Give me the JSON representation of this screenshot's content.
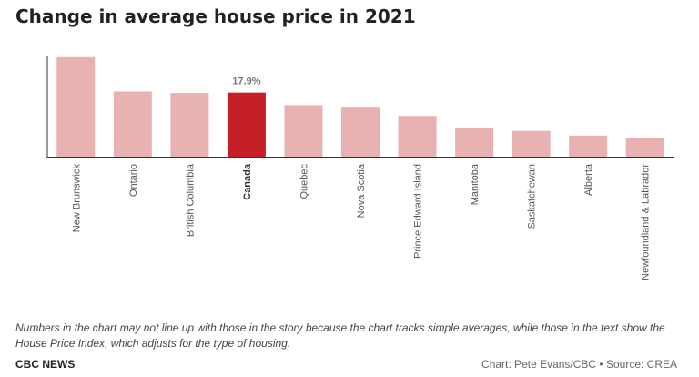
{
  "title": "Change in average house price in 2021",
  "note": "Numbers in the chart may not line up with those in the story because the chart tracks simple averages, while those in the text show the House Price Index, which adjusts for the type of housing.",
  "brand": "CBC NEWS",
  "credit": "Chart: Pete Evans/CBC • Source: CREA",
  "colors": {
    "bar": "#e8b2b2",
    "highlight": "#c41f26",
    "axis": "#333333",
    "label": "#555555"
  },
  "chart_data": {
    "type": "bar",
    "categories": [
      "New Brunswick",
      "Ontario",
      "British Columbia",
      "Canada",
      "Quebec",
      "Nova Scotia",
      "Prince Edward Island",
      "Manitoba",
      "Saskatchewan",
      "Alberta",
      "Newfoundland & Labrador"
    ],
    "values": [
      27.8,
      18.2,
      17.8,
      17.9,
      14.4,
      13.7,
      11.4,
      7.9,
      7.2,
      5.9,
      5.2
    ],
    "highlight": "Canada",
    "data_labels": [
      {
        "category": "Canada",
        "text": "17.9%"
      }
    ],
    "ylim": [
      0,
      28
    ],
    "grid": false,
    "legend": "none",
    "xlabel": "",
    "ylabel": ""
  }
}
